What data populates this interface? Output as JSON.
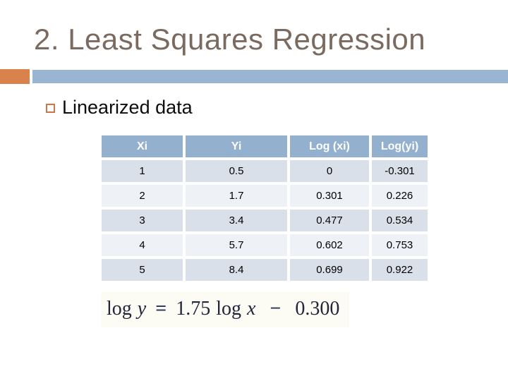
{
  "title": "2. Least Squares Regression",
  "bullet": {
    "label": "Linearized data"
  },
  "table": {
    "headers": [
      "Xi",
      "Yi",
      "Log (xi)",
      "Log(yi)"
    ],
    "rows": [
      [
        "1",
        "0.5",
        "0",
        "-0.301"
      ],
      [
        "2",
        "1.7",
        "0.301",
        "0.226"
      ],
      [
        "3",
        "3.4",
        "0.477",
        "0.534"
      ],
      [
        "4",
        "5.7",
        "0.602",
        "0.753"
      ],
      [
        "5",
        "8.4",
        "0.699",
        "0.922"
      ]
    ]
  },
  "formula": {
    "log1": "log",
    "y": "y",
    "equals": "=",
    "coefficient": "1.75",
    "log2": "log",
    "x": "x",
    "minus": "−",
    "intercept": "0.300"
  },
  "colors": {
    "title_brown": "#7a6a5f",
    "accent_orange": "#d9824c",
    "accent_blue": "#99b5d1",
    "table_header_blue": "#93b1ce",
    "row_dark": "#d9e0ea",
    "row_light": "#eef1f6"
  }
}
